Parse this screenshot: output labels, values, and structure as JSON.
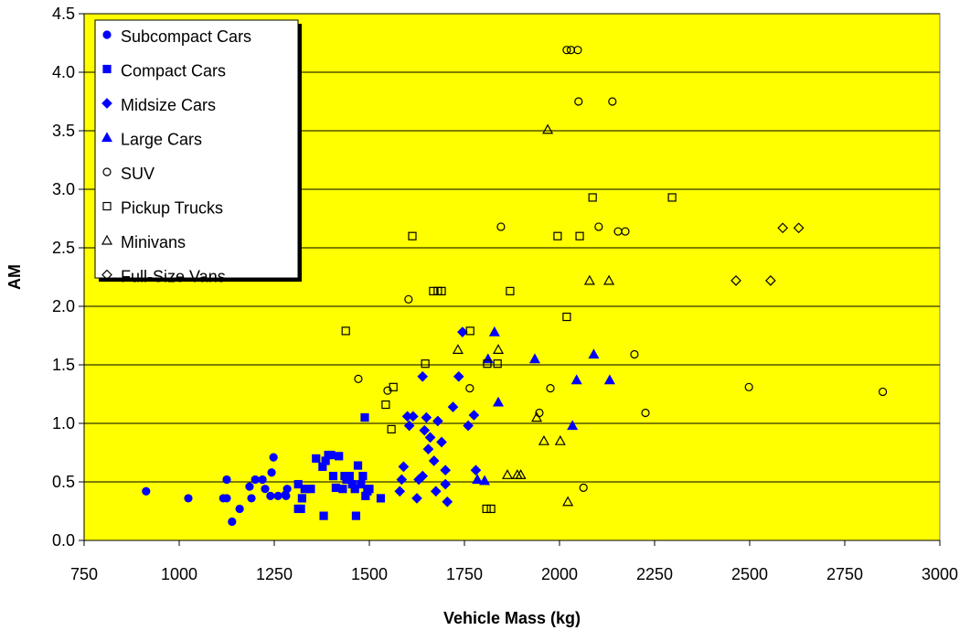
{
  "chart_data": {
    "type": "scatter",
    "x_label": "Vehicle Mass (kg)",
    "y_label": "AM",
    "xlim": [
      750,
      3000
    ],
    "ylim": [
      0,
      4.5
    ],
    "xticks": [
      750,
      1000,
      1250,
      1500,
      1750,
      2000,
      2250,
      2500,
      2750,
      3000
    ],
    "yticks": [
      {
        "value": 0,
        "label": "0.0"
      },
      {
        "value": 0.5,
        "label": "0.5"
      },
      {
        "value": 1,
        "label": "1.0"
      },
      {
        "value": 1.5,
        "label": "1.5"
      },
      {
        "value": 2,
        "label": "2.0"
      },
      {
        "value": 2.5,
        "label": "2.5"
      },
      {
        "value": 3,
        "label": "3.0"
      },
      {
        "value": 3.5,
        "label": "3.5"
      },
      {
        "value": 4,
        "label": "4.0"
      },
      {
        "value": 4.5,
        "label": "4.5"
      }
    ],
    "grid": true,
    "background": "#ffff00",
    "legend": "upper left",
    "series": [
      {
        "name": "Subcompact Cars",
        "color": "#0000ff",
        "marker": "circle",
        "filled": true,
        "x": [
          913,
          1024,
          1116,
          1125,
          1125,
          1139,
          1159,
          1185,
          1190,
          1200,
          1219,
          1226,
          1240,
          1243,
          1248,
          1260,
          1279,
          1284,
          1281
        ],
        "values": [
          0.42,
          0.36,
          0.36,
          0.36,
          0.52,
          0.16,
          0.27,
          0.46,
          0.36,
          0.52,
          0.52,
          0.44,
          0.38,
          0.58,
          0.71,
          0.38,
          0.39,
          0.44,
          0.38
        ]
      },
      {
        "name": "Compact Cars",
        "color": "#0000ff",
        "marker": "square",
        "filled": true,
        "x": [
          1313,
          1313,
          1320,
          1323,
          1330,
          1346,
          1360,
          1377,
          1385,
          1392,
          1399,
          1380,
          1405,
          1412,
          1420,
          1430,
          1435,
          1440,
          1448,
          1455,
          1462,
          1470,
          1478,
          1483,
          1490,
          1495,
          1500,
          1465,
          1530,
          1488
        ],
        "values": [
          0.48,
          0.27,
          0.27,
          0.36,
          0.44,
          0.44,
          0.7,
          0.63,
          0.68,
          0.73,
          0.73,
          0.21,
          0.55,
          0.45,
          0.72,
          0.44,
          0.55,
          0.52,
          0.55,
          0.48,
          0.44,
          0.64,
          0.48,
          0.55,
          0.38,
          0.42,
          0.44,
          0.21,
          0.36,
          1.05
        ]
      },
      {
        "name": "Midsize Cars",
        "color": "#0000ff",
        "marker": "diamond",
        "filled": true,
        "x": [
          1580,
          1585,
          1590,
          1600,
          1605,
          1615,
          1625,
          1630,
          1640,
          1645,
          1650,
          1655,
          1660,
          1670,
          1675,
          1680,
          1690,
          1700,
          1705,
          1720,
          1735,
          1745,
          1760,
          1775,
          1780,
          1640,
          1700
        ],
        "values": [
          0.42,
          0.52,
          0.63,
          1.06,
          0.98,
          1.06,
          0.36,
          0.52,
          0.55,
          0.94,
          1.05,
          0.78,
          0.88,
          0.68,
          0.42,
          1.02,
          0.84,
          0.48,
          0.33,
          1.14,
          1.4,
          1.78,
          0.98,
          1.07,
          0.6,
          1.4,
          0.6
        ]
      },
      {
        "name": "Large Cars",
        "color": "#0000ff",
        "marker": "triangle",
        "filled": true,
        "x": [
          1829,
          1812,
          1839,
          1935,
          2090,
          2045,
          2034,
          2132,
          1784,
          1803
        ],
        "values": [
          1.78,
          1.55,
          1.18,
          1.55,
          1.59,
          1.37,
          0.98,
          1.37,
          0.52,
          0.51
        ]
      },
      {
        "name": "SUV",
        "color": "#000000",
        "marker": "circle",
        "filled": false,
        "x": [
          2019,
          2030,
          2048,
          2050,
          2139,
          1846,
          2103,
          2154,
          2173,
          1603,
          2197,
          1471,
          1548,
          1764,
          1976,
          1947,
          2226,
          2498,
          2850,
          2063
        ],
        "values": [
          4.19,
          4.19,
          4.19,
          3.75,
          3.75,
          2.68,
          2.68,
          2.64,
          2.64,
          2.06,
          1.59,
          1.38,
          1.28,
          1.3,
          1.3,
          1.09,
          1.09,
          1.31,
          1.27,
          0.45
        ]
      },
      {
        "name": "Pickup Trucks",
        "color": "#000000",
        "marker": "square",
        "filled": false,
        "x": [
          2087,
          2296,
          1613,
          1995,
          2053,
          1668,
          1680,
          1690,
          1870,
          1438,
          1765,
          2019,
          1647,
          1810,
          1837,
          1563,
          1543,
          1558,
          1808,
          1820
        ],
        "values": [
          2.93,
          2.93,
          2.6,
          2.6,
          2.6,
          2.13,
          2.13,
          2.13,
          2.13,
          1.79,
          1.79,
          1.91,
          1.51,
          1.51,
          1.51,
          1.31,
          1.16,
          0.95,
          0.27,
          0.27
        ]
      },
      {
        "name": "Minivans",
        "color": "#000000",
        "marker": "triangle",
        "filled": false,
        "x": [
          1969,
          2079,
          2130,
          1733,
          1839,
          1940,
          1959,
          2002,
          1863,
          1889,
          1898,
          2022
        ],
        "values": [
          3.51,
          2.22,
          2.22,
          1.63,
          1.63,
          1.05,
          0.85,
          0.85,
          0.56,
          0.56,
          0.56,
          0.33
        ]
      },
      {
        "name": "Full-Size Vans",
        "color": "#000000",
        "marker": "diamond",
        "filled": false,
        "x": [
          2464,
          2555,
          2587,
          2629
        ],
        "values": [
          2.22,
          2.22,
          2.67,
          2.67
        ]
      }
    ]
  }
}
